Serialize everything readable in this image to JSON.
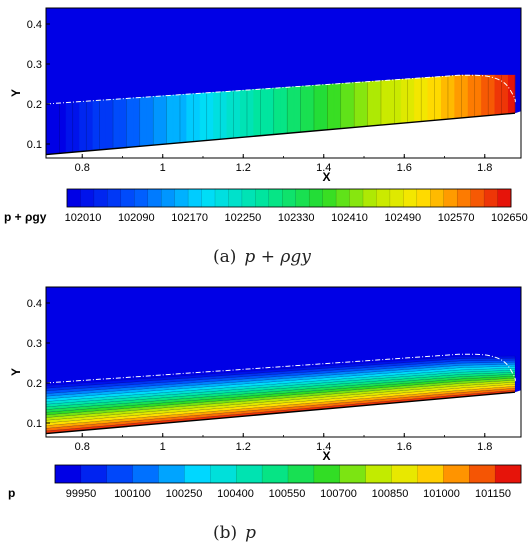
{
  "chart_data": [
    {
      "type": "heatmap",
      "caption_prefix": "(a)",
      "caption_math": "p + ρgy",
      "xlabel": "X",
      "ylabel": "Y",
      "xlim": [
        0.71,
        1.89
      ],
      "ylim": [
        0.065,
        0.44
      ],
      "xticks": [
        0.8,
        1,
        1.2,
        1.4,
        1.6,
        1.8
      ],
      "xtick_labels": [
        "0.8",
        "1",
        "1.2",
        "1.4",
        "1.6",
        "1.8"
      ],
      "yticks": [
        0.1,
        0.2,
        0.3,
        0.4
      ],
      "ytick_labels": [
        "0.1",
        "0.2",
        "0.3",
        "0.4"
      ],
      "colorbar": {
        "label": "p + ρgy",
        "min": 102010,
        "max": 102650,
        "levels": 33,
        "tick_labels": [
          "102010",
          "102090",
          "102170",
          "102250",
          "102330",
          "102410",
          "102490",
          "102570",
          "102650"
        ]
      },
      "field": "increasing with X along the water layer; air region uniform at minimum"
    },
    {
      "type": "heatmap",
      "caption_prefix": "(b)",
      "caption_math": "p",
      "xlabel": "X",
      "ylabel": "Y",
      "xlim": [
        0.71,
        1.89
      ],
      "ylim": [
        0.065,
        0.44
      ],
      "xticks": [
        0.8,
        1,
        1.2,
        1.4,
        1.6,
        1.8
      ],
      "xtick_labels": [
        "0.8",
        "1",
        "1.2",
        "1.4",
        "1.6",
        "1.8"
      ],
      "yticks": [
        0.1,
        0.2,
        0.3,
        0.4
      ],
      "ytick_labels": [
        "0.1",
        "0.2",
        "0.3",
        "0.4"
      ],
      "colorbar": {
        "label": "p",
        "min": 99950,
        "max": 101225,
        "levels": 18,
        "tick_labels": [
          "99950",
          "100100",
          "100250",
          "100400",
          "100550",
          "100700",
          "100850",
          "101000",
          "101150"
        ]
      },
      "field": "hydrostatic: increasing with depth below free surface; air region uniform at minimum"
    }
  ]
}
